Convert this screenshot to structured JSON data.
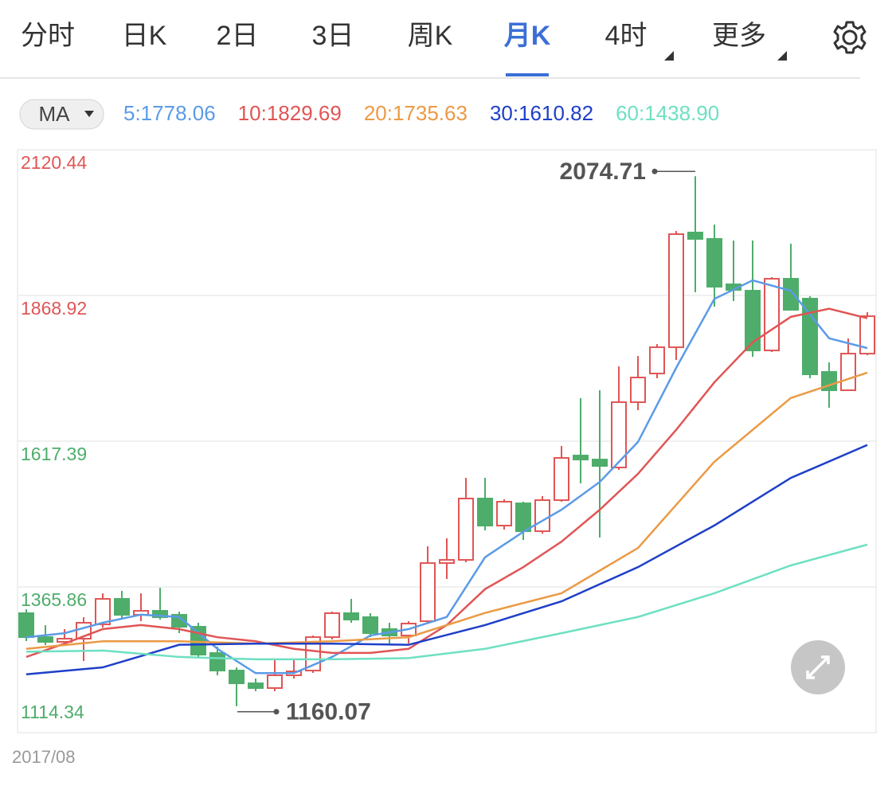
{
  "tabs": {
    "items": [
      "分时",
      "日K",
      "2日",
      "3日",
      "周K",
      "月K",
      "4时",
      "更多"
    ],
    "active": 5,
    "dropdown": [
      6,
      7
    ]
  },
  "indicator": {
    "button": "MA"
  },
  "chart_data": {
    "type": "candlestick",
    "categories": [
      "2017/08",
      null,
      null,
      null,
      null,
      null,
      null,
      null,
      null,
      null,
      null,
      null,
      null,
      null,
      null,
      null,
      null,
      null,
      null,
      null,
      null,
      null,
      null,
      null,
      null,
      null,
      null,
      null,
      null,
      null,
      null,
      null,
      null,
      null,
      null,
      null,
      null,
      null,
      null,
      null,
      null,
      null,
      null,
      null,
      null
    ],
    "open": [
      1320.5,
      1279.2,
      1271.0,
      1276.5,
      1301.2,
      1345.2,
      1317.7,
      1324.6,
      1317.7,
      1297.1,
      1251.7,
      1221.5,
      1199.5,
      1191.3,
      1213.3,
      1221.5,
      1279.2,
      1320.5,
      1313.6,
      1293.0,
      1282.0,
      1306.7,
      1407.0,
      1412.5,
      1518.4,
      1471.7,
      1510.1,
      1462.0,
      1515.6,
      1592.6,
      1585.7,
      1572.0,
      1684.7,
      1734.2,
      1779.5,
      1977.5,
      1966.5,
      1888.1,
      1877.1,
      1774.0,
      1897.7,
      1863.4,
      1736.9,
      1705.3,
      1768.5
    ],
    "high": [
      1327.3,
      1299.8,
      1293.0,
      1313.6,
      1354.8,
      1359.0,
      1354.8,
      1364.4,
      1323.2,
      1304.0,
      1262.7,
      1227.0,
      1207.8,
      1240.7,
      1240.7,
      1282.0,
      1323.2,
      1345.2,
      1320.5,
      1304.0,
      1306.7,
      1435.9,
      1449.7,
      1554.1,
      1554.1,
      1517.0,
      1512.9,
      1522.5,
      1609.1,
      1691.6,
      1705.3,
      1746.5,
      1764.4,
      1785.0,
      1980.2,
      2074.71,
      1991.2,
      1963.7,
      1963.7,
      1900.5,
      1958.2,
      1867.5,
      1753.4,
      1794.6,
      1840.0
    ],
    "low": [
      1272.4,
      1265.5,
      1265.5,
      1238.0,
      1295.7,
      1309.5,
      1306.7,
      1309.5,
      1286.1,
      1243.5,
      1213.3,
      1160.07,
      1185.8,
      1185.8,
      1207.8,
      1217.4,
      1275.1,
      1304.0,
      1279.2,
      1268.2,
      1268.2,
      1304.0,
      1379.6,
      1408.4,
      1463.4,
      1464.8,
      1446.9,
      1457.9,
      1512.9,
      1544.5,
      1451.1,
      1567.9,
      1670.9,
      1725.9,
      1757.5,
      1874.4,
      1849.6,
      1859.2,
      1763.0,
      1771.3,
      1842.8,
      1725.9,
      1675.1,
      1705.3,
      1765.8
    ],
    "close": [
      1279.2,
      1271.0,
      1276.5,
      1304.0,
      1345.2,
      1317.7,
      1324.6,
      1313.6,
      1297.1,
      1249.0,
      1221.5,
      1199.5,
      1191.3,
      1213.3,
      1220.1,
      1279.2,
      1320.5,
      1309.5,
      1286.1,
      1282.0,
      1302.6,
      1407.0,
      1412.5,
      1518.4,
      1471.7,
      1512.9,
      1462.0,
      1515.6,
      1588.5,
      1585.7,
      1574.7,
      1684.7,
      1727.3,
      1779.5,
      1974.7,
      1966.5,
      1884.0,
      1878.5,
      1774.0,
      1897.7,
      1844.1,
      1732.8,
      1705.3,
      1768.5,
      1833.1
    ],
    "up_color": "#e05555",
    "down_color": "#4ead6b",
    "ylim": [
      1114.34,
      2120.44
    ],
    "yticks": [
      2120.44,
      1868.92,
      1617.39,
      1365.86,
      1114.34
    ],
    "ytick_colors": [
      "#e05555",
      "#e05555",
      "#4ead6b",
      "#4ead6b",
      "#4ead6b"
    ],
    "grid": true,
    "annotations": [
      {
        "candle": 35,
        "field": "high",
        "side": "left"
      },
      {
        "candle": 11,
        "field": "low",
        "side": "right"
      }
    ],
    "series": [
      {
        "name": "5",
        "legend": "5:1778.06",
        "color": "#5b9be6",
        "x": [
          0,
          2,
          4,
          6,
          8,
          10,
          12,
          14,
          16,
          18,
          20,
          22,
          24,
          26,
          28,
          30,
          32,
          34,
          36,
          38,
          40,
          42,
          44
        ],
        "values": [
          1279,
          1286,
          1304,
          1318,
          1314,
          1259,
          1217,
          1217,
          1245,
          1282,
          1293,
          1314,
          1417,
          1461,
          1499,
          1547,
          1616,
          1744,
          1863,
          1895,
          1877,
          1795,
          1778.06
        ]
      },
      {
        "name": "10",
        "legend": "10:1829.69",
        "color": "#e05555",
        "x": [
          0,
          2,
          4,
          6,
          8,
          10,
          12,
          14,
          16,
          18,
          20,
          22,
          24,
          26,
          28,
          30,
          32,
          34,
          36,
          38,
          40,
          42,
          44
        ],
        "values": [
          1245,
          1268,
          1293,
          1300,
          1293,
          1279,
          1272,
          1259,
          1252,
          1252,
          1259,
          1300,
          1362,
          1400,
          1444,
          1499,
          1561,
          1637,
          1719,
          1788,
          1832,
          1846,
          1829.69
        ]
      },
      {
        "name": "20",
        "legend": "20:1735.63",
        "color": "#eb9a45",
        "x": [
          0,
          4,
          8,
          12,
          16,
          20,
          24,
          28,
          32,
          36,
          40,
          44
        ],
        "values": [
          1259,
          1272,
          1272,
          1268,
          1272,
          1279,
          1321,
          1355,
          1433,
          1582,
          1692,
          1735.63
        ]
      },
      {
        "name": "30",
        "legend": "30:1610.82",
        "color": "#1e3fc8",
        "x": [
          0,
          4,
          8,
          12,
          16,
          20,
          24,
          28,
          32,
          36,
          40,
          44
        ],
        "values": [
          1215,
          1227,
          1266,
          1268,
          1268,
          1266,
          1300,
          1341,
          1400,
          1472,
          1554,
          1610.82
        ]
      },
      {
        "name": "60",
        "legend": "60:1438.90",
        "color": "#6ee0c2",
        "x": [
          0,
          4,
          8,
          12,
          16,
          20,
          24,
          28,
          32,
          36,
          40,
          44
        ],
        "values": [
          1254,
          1256,
          1245,
          1241,
          1241,
          1243,
          1259,
          1286,
          1314,
          1355,
          1403,
          1438.9
        ]
      }
    ]
  }
}
